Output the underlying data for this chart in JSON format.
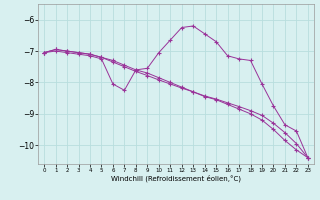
{
  "xlabel": "Windchill (Refroidissement éolien,°C)",
  "background_color": "#d8f0f0",
  "grid_color": "#b8dede",
  "line_color": "#993399",
  "xlim": [
    -0.5,
    23.5
  ],
  "ylim": [
    -10.6,
    -5.5
  ],
  "yticks": [
    -10,
    -9,
    -8,
    -7,
    -6
  ],
  "xticks": [
    0,
    1,
    2,
    3,
    4,
    5,
    6,
    7,
    8,
    9,
    10,
    11,
    12,
    13,
    14,
    15,
    16,
    17,
    18,
    19,
    20,
    21,
    22,
    23
  ],
  "line1_x": [
    0,
    1,
    2,
    3,
    4,
    5,
    6,
    7,
    8,
    9,
    10,
    11,
    12,
    13,
    14,
    15,
    16,
    17,
    18,
    19,
    20,
    21,
    22,
    23
  ],
  "line1_y": [
    -7.05,
    -6.95,
    -7.0,
    -7.05,
    -7.1,
    -7.2,
    -7.3,
    -7.45,
    -7.6,
    -7.7,
    -7.85,
    -8.0,
    -8.15,
    -8.3,
    -8.45,
    -8.55,
    -8.7,
    -8.85,
    -9.0,
    -9.2,
    -9.5,
    -9.85,
    -10.15,
    -10.4
  ],
  "line2_x": [
    0,
    1,
    2,
    3,
    4,
    5,
    6,
    7,
    8,
    9,
    10,
    11,
    12,
    13,
    14,
    15,
    16,
    17,
    18,
    19,
    20,
    21,
    22,
    23
  ],
  "line2_y": [
    -7.05,
    -6.95,
    -7.0,
    -7.05,
    -7.1,
    -7.2,
    -7.35,
    -7.5,
    -7.65,
    -7.78,
    -7.92,
    -8.05,
    -8.18,
    -8.3,
    -8.43,
    -8.53,
    -8.65,
    -8.77,
    -8.9,
    -9.05,
    -9.3,
    -9.6,
    -9.95,
    -10.4
  ],
  "line3_x": [
    0,
    1,
    2,
    3,
    4,
    5,
    6,
    7,
    8,
    9,
    10,
    11,
    12,
    13,
    14,
    15,
    16,
    17,
    18,
    19,
    20,
    21,
    22,
    23
  ],
  "line3_y": [
    -7.05,
    -7.0,
    -7.05,
    -7.1,
    -7.15,
    -7.25,
    -8.05,
    -8.25,
    -7.6,
    -7.55,
    -7.05,
    -6.65,
    -6.25,
    -6.2,
    -6.45,
    -6.7,
    -7.15,
    -7.25,
    -7.3,
    -8.05,
    -8.75,
    -9.35,
    -9.55,
    -10.4
  ]
}
